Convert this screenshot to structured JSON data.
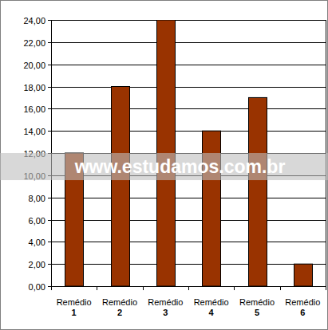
{
  "chart_data": {
    "type": "bar",
    "categories": [
      "Remédio 1",
      "Remédio 2",
      "Remédio 3",
      "Remédio 4",
      "Remédio 5",
      "Remédio 6"
    ],
    "values": [
      12,
      18,
      24,
      14,
      17,
      2
    ],
    "color": "#993300",
    "ylim": [
      0,
      24
    ],
    "yticks": [
      {
        "value": 0,
        "label": "0,00"
      },
      {
        "value": 2,
        "label": "2,00"
      },
      {
        "value": 4,
        "label": "4,00"
      },
      {
        "value": 6,
        "label": "6,00"
      },
      {
        "value": 8,
        "label": "8,00"
      },
      {
        "value": 10,
        "label": "10,00"
      },
      {
        "value": 12,
        "label": "12,00"
      },
      {
        "value": 14,
        "label": "14,00"
      },
      {
        "value": 16,
        "label": "16,00"
      },
      {
        "value": 18,
        "label": "18,00"
      },
      {
        "value": 20,
        "label": "20,00"
      },
      {
        "value": 22,
        "label": "22,00"
      },
      {
        "value": 24,
        "label": "24,00"
      }
    ],
    "grid": true,
    "annotations": [
      "www.estudamos.com.br"
    ]
  }
}
